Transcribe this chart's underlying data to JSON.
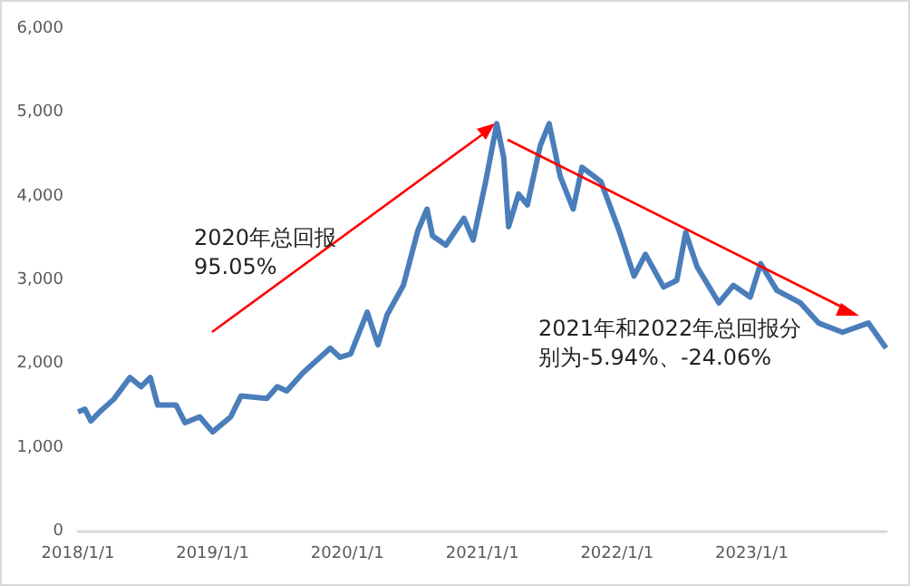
{
  "chart_data": {
    "type": "line",
    "x": [
      "2018-01-01",
      "2018-01-20",
      "2018-02-05",
      "2018-03-01",
      "2018-04-08",
      "2018-05-22",
      "2018-06-21",
      "2018-07-16",
      "2018-08-05",
      "2018-09-24",
      "2018-10-18",
      "2018-11-27",
      "2019-01-01",
      "2019-02-19",
      "2019-03-19",
      "2019-05-28",
      "2019-06-25",
      "2019-07-21",
      "2019-09-04",
      "2019-11-16",
      "2019-12-12",
      "2020-01-10",
      "2020-02-24",
      "2020-03-24",
      "2020-04-18",
      "2020-06-01",
      "2020-07-10",
      "2020-08-04",
      "2020-08-19",
      "2020-09-24",
      "2020-11-12",
      "2020-12-07",
      "2021-01-10",
      "2021-02-09",
      "2021-02-28",
      "2021-03-13",
      "2021-04-09",
      "2021-05-03",
      "2021-06-07",
      "2021-07-01",
      "2021-07-31",
      "2021-09-04",
      "2021-09-28",
      "2021-11-18",
      "2022-01-06",
      "2022-02-16",
      "2022-03-19",
      "2022-05-07",
      "2022-06-12",
      "2022-07-06",
      "2022-08-06",
      "2022-10-04",
      "2022-11-12",
      "2022-12-28",
      "2023-01-25",
      "2023-03-10",
      "2023-05-13",
      "2023-07-01",
      "2023-09-04",
      "2023-11-13",
      "2023-12-31"
    ],
    "series": [
      {
        "color": "#4a7ebb",
        "values": [
          1430,
          1460,
          1320,
          1430,
          1580,
          1840,
          1730,
          1840,
          1510,
          1510,
          1300,
          1370,
          1190,
          1370,
          1620,
          1590,
          1730,
          1680,
          1900,
          2190,
          2080,
          2120,
          2620,
          2230,
          2590,
          2940,
          3590,
          3850,
          3530,
          3420,
          3740,
          3480,
          4180,
          4870,
          4460,
          3640,
          4030,
          3900,
          4610,
          4870,
          4240,
          3850,
          4350,
          4180,
          3600,
          3050,
          3310,
          2920,
          3000,
          3570,
          3160,
          2730,
          2940,
          2800,
          3200,
          2880,
          2730,
          2490,
          2380,
          2490,
          2190
        ]
      }
    ],
    "xlim": [
      "2018-01-01",
      "2024-01-01"
    ],
    "xticks": [
      {
        "value": "2018-01-01",
        "label": "2018/1/1"
      },
      {
        "value": "2019-01-01",
        "label": "2019/1/1"
      },
      {
        "value": "2020-01-01",
        "label": "2020/1/1"
      },
      {
        "value": "2021-01-01",
        "label": "2021/1/1"
      },
      {
        "value": "2022-01-01",
        "label": "2022/1/1"
      },
      {
        "value": "2023-01-01",
        "label": "2023/1/1"
      }
    ],
    "ylim": [
      0,
      6000
    ],
    "yticks": [
      {
        "value": 0,
        "label": "0"
      },
      {
        "value": 1000,
        "label": "1,000"
      },
      {
        "value": 2000,
        "label": "2,000"
      },
      {
        "value": 3000,
        "label": "3,000"
      },
      {
        "value": 4000,
        "label": "4,000"
      },
      {
        "value": 5000,
        "label": "5,000"
      },
      {
        "value": 6000,
        "label": "6,000"
      }
    ],
    "annotations": [
      "2020年总回报\n95.05%",
      "2021年和2022年总回报分别为-5.94%、-24.06%"
    ],
    "grid": false,
    "marker": "none",
    "line_style": "solid"
  }
}
